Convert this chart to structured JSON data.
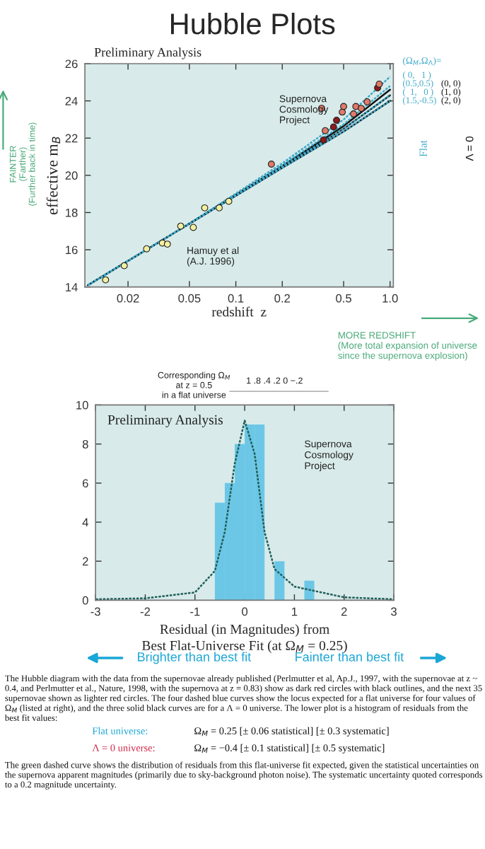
{
  "chart_data": [
    {
      "type": "scatter",
      "title": "Hubble Plots",
      "xlabel": "redshift  z",
      "ylabel": "effective m$_{B}$",
      "legend_title": "(Ω$_{M}$,Ω$_{Λ}$)=",
      "log": "x",
      "xlim": [
        0.0105,
        1.05
      ],
      "xticks": [
        0.02,
        0.05,
        0.1,
        0.2,
        0.5,
        {
          "value": 1.0,
          "label": "1.0"
        }
      ],
      "ylim": [
        14,
        26
      ],
      "yticks": [
        14,
        16,
        18,
        20,
        22,
        24,
        26
      ],
      "grid": false,
      "legend": "right",
      "series": [
        {
          "type": "line",
          "name": "( 0,   1 )",
          "color": "#3fa9c9",
          "line_style": "dashed",
          "x": [
            0.011,
            0.02,
            0.05,
            0.1,
            0.2,
            0.5,
            1.0
          ],
          "values": [
            14.1,
            15.4,
            17.4,
            19.02,
            20.65,
            23.0,
            25.3
          ]
        },
        {
          "type": "line",
          "name": "(0.5,0.5)",
          "color": "#3fa9c9",
          "line_style": "dashed",
          "x": [
            0.011,
            0.02,
            0.05,
            0.1,
            0.2,
            0.5,
            1.0
          ],
          "values": [
            14.1,
            15.4,
            17.4,
            18.98,
            20.55,
            22.75,
            24.8
          ]
        },
        {
          "type": "line",
          "name": "(  1,   0 )",
          "color": "#3fa9c9",
          "line_style": "dashed",
          "x": [
            0.011,
            0.02,
            0.05,
            0.1,
            0.2,
            0.5,
            1.0
          ],
          "values": [
            14.1,
            15.4,
            17.4,
            18.93,
            20.45,
            22.5,
            24.3
          ]
        },
        {
          "type": "line",
          "name": "(1.5,-0.5)",
          "color": "#3fa9c9",
          "line_style": "dashed",
          "x": [
            0.011,
            0.02,
            0.05,
            0.1,
            0.2,
            0.5,
            1.0
          ],
          "values": [
            14.1,
            15.4,
            17.4,
            18.9,
            20.4,
            22.35,
            24.0
          ]
        },
        {
          "type": "line",
          "name": "(0, 0)",
          "color": "#111111",
          "line_style": "solid",
          "x": [
            0.011,
            0.02,
            0.05,
            0.1,
            0.2,
            0.5,
            1.0
          ],
          "values": [
            14.1,
            15.4,
            17.4,
            18.96,
            20.5,
            22.65,
            24.6
          ]
        },
        {
          "type": "line",
          "name": "(1, 0)",
          "color": "#111111",
          "line_style": "solid",
          "x": [
            0.011,
            0.02,
            0.05,
            0.1,
            0.2,
            0.5,
            1.0
          ],
          "values": [
            14.1,
            15.4,
            17.4,
            18.93,
            20.45,
            22.5,
            24.3
          ]
        },
        {
          "type": "line",
          "name": "(2, 0)",
          "color": "#111111",
          "line_style": "solid",
          "x": [
            0.011,
            0.02,
            0.05,
            0.1,
            0.2,
            0.5,
            1.0
          ],
          "values": [
            14.1,
            15.4,
            17.4,
            18.9,
            20.4,
            22.35,
            24.0
          ]
        },
        {
          "type": "scatter",
          "marker": "circle",
          "color": "#f3efa0",
          "x": [
            0.0143,
            0.0189,
            0.0264,
            0.0334,
            0.036,
            0.0439,
            0.053,
            0.0628,
            0.078,
            0.09
          ],
          "values": [
            14.38,
            15.14,
            16.05,
            16.36,
            16.3,
            17.27,
            17.2,
            18.25,
            18.25,
            18.6
          ]
        },
        {
          "type": "scatter",
          "marker": "circle",
          "color": "#8b1a1a",
          "x": [
            0.37,
            0.43,
            0.45,
            0.83
          ],
          "values": [
            21.9,
            22.6,
            22.96,
            24.7
          ]
        },
        {
          "type": "scatter",
          "marker": "circle",
          "color": "#e07a6a",
          "x": [
            0.17,
            0.36,
            0.38,
            0.49,
            0.5,
            0.58,
            0.6,
            0.65,
            0.71,
            0.85
          ],
          "values": [
            20.6,
            23.6,
            22.4,
            23.4,
            23.7,
            23.3,
            23.7,
            23.6,
            23.95,
            24.9
          ]
        }
      ],
      "annotations": [
        "Preliminary Analysis",
        "Supernova\nCosmology\nProject",
        "Hamuy et al\n(A.J. 1996)",
        "FAINTER\n(Farther)\n(Further back in time)",
        "MORE REDSHIFT\n(More total expansion of universe\nsince the supernova explosion)",
        "Flat",
        "Λ = 0"
      ]
    },
    {
      "type": "histogram",
      "xlabel": "Residual (in Magnitudes) from\nBest Flat-Universe Fit (at Ω$_{M}$ = 0.25)",
      "xlim": [
        -3,
        3
      ],
      "xticks": [
        -3,
        -2,
        -1,
        0,
        1,
        2,
        3
      ],
      "ylim": [
        0,
        10
      ],
      "yticks": [
        0,
        2,
        4,
        6,
        8,
        10
      ],
      "grid": false,
      "series": [
        {
          "type": "histogram",
          "color": "#6cc7e6",
          "bins": [
            -0.6,
            -0.4,
            -0.2,
            0,
            0.2,
            0.4,
            0.6,
            0.8,
            1.0,
            1.2,
            1.4
          ],
          "values": [
            5,
            6,
            8,
            9,
            9,
            0,
            2,
            0,
            0,
            1
          ]
        },
        {
          "type": "line",
          "color": "#1f5f5a",
          "line_style": "dashed",
          "x": [
            -3,
            -2,
            -1,
            -0.6,
            -0.4,
            -0.2,
            0,
            0.2,
            0.4,
            0.6,
            1,
            2,
            3
          ],
          "values": [
            0.05,
            0.1,
            0.4,
            1.5,
            3.5,
            7,
            9.2,
            7.5,
            3.5,
            1.6,
            0.7,
            0.15,
            0.05
          ]
        }
      ],
      "annotations": [
        "Preliminary Analysis",
        "Supernova\nCosmology\nProject",
        "Corresponding Ω$_{M}$\nat z = 0.5\nin a flat universe",
        "1 .8 .4 .2 0 −.2",
        "Brighter than best fit",
        "Fainter than best fit",
        "The Hubble diagram with the data from the supernovae already published (Perlmutter et al, Ap.J., 1997, with the supernovae at z ~ 0.4, and Perlmutter et al., Nature, 1998, with the supernova at z = 0.83) show as dark red circles with black outlines, and the next 35 supernovae shown as lighter red circles. The four dashed blue curves show the locus expected for a flat universe for four values of Ω$_{M}$ (listed at right), and the three solid black curves are for a Λ = 0 universe. The lower plot is a histogram of residuals from the best fit values:",
        "Flat universe:",
        "Ω$_{M}$ = 0.25 [± 0.06 statistical] [± 0.3 systematic]",
        "Λ = 0 universe:",
        "Ω$_{M}$ = −0.4 [± 0.1 statistical] [± 0.5 systematic]",
        "The green dashed curve shows the distribution of residuals from this flat-universe fit expected, given the statistical uncertainties on the supernova apparent magnitudes (primarily due to sky-background photon noise). The systematic uncertainty quoted corresponds to a 0.2 magnitude uncertainty."
      ]
    }
  ]
}
